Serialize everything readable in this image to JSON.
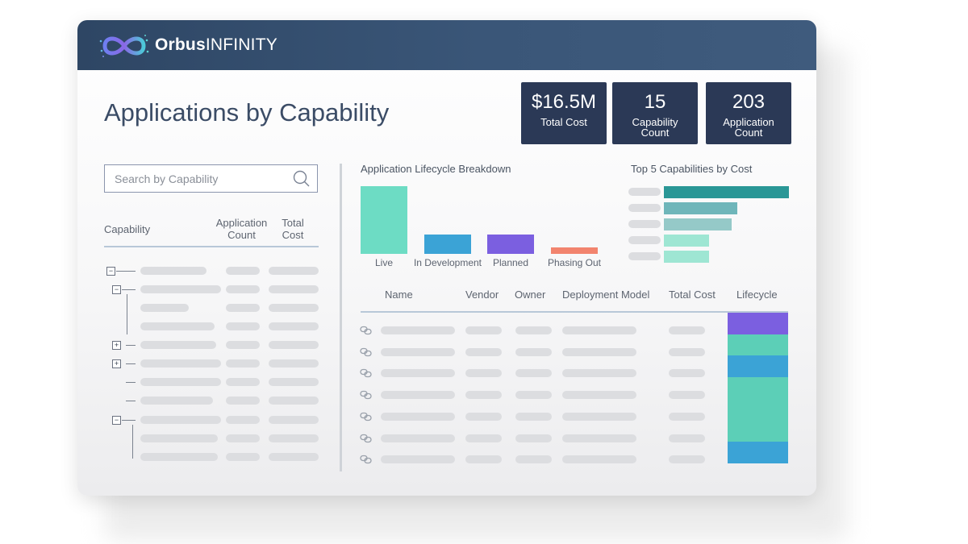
{
  "app": {
    "brand_bold": "Orbus",
    "brand_light": "INFINITY"
  },
  "page": {
    "title": "Applications by Capability"
  },
  "kpis": [
    {
      "value": "$16.5M",
      "label": "Total Cost"
    },
    {
      "value": "15",
      "label": "Capability Count"
    },
    {
      "value": "203",
      "label": "Application Count"
    }
  ],
  "search": {
    "placeholder": "Search by Capability"
  },
  "capability_table": {
    "headers": {
      "capability": "Capability",
      "app_count": "Application Count",
      "total_cost": "Total Cost"
    }
  },
  "lifecycle_chart": {
    "title": "Application Lifecycle Breakdown",
    "chart_data": {
      "type": "bar",
      "categories": [
        "Live",
        "In Development",
        "Planned",
        "Phasing Out"
      ],
      "values": [
        100,
        29,
        29,
        10
      ],
      "colors": [
        "#6ddcc4",
        "#3ba3d6",
        "#7b5fe0",
        "#f2846e"
      ]
    }
  },
  "top5_chart": {
    "title": "Top 5 Capabilities by Cost",
    "chart_data": {
      "type": "bar",
      "orientation": "horizontal",
      "values": [
        100,
        59,
        54,
        36,
        36
      ],
      "colors": [
        "#2a9796",
        "#6fb6ba",
        "#95c9c8",
        "#9ee6d3",
        "#9ee6d3"
      ]
    }
  },
  "app_table": {
    "headers": [
      "Name",
      "Vendor",
      "Owner",
      "Deployment Model",
      "Total Cost",
      "Lifecycle"
    ],
    "lifecycle_colors": [
      "#7b5fe0",
      "#5ccfb7",
      "#3ba3d6",
      "#5ccfb7",
      "#5ccfb7",
      "#5ccfb7",
      "#3ba3d6"
    ]
  }
}
